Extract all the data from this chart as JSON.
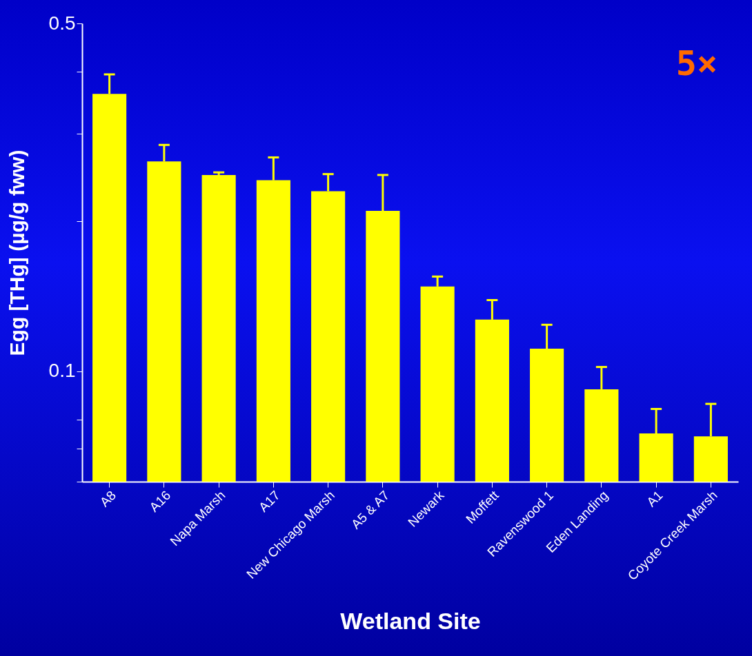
{
  "chart_data": {
    "type": "bar",
    "xlabel": "Wetland Site",
    "ylabel": "Egg [THg] (µg/g fww)",
    "categories": [
      "A8",
      "A16",
      "Napa Marsh",
      "A17",
      "New Chicago Marsh",
      "A5 & A7",
      "Newark",
      "Moffett",
      "Ravenswood 1",
      "Eden Landing",
      "A1",
      "Coyote Creek Marsh"
    ],
    "values": [
      0.361,
      0.264,
      0.248,
      0.242,
      0.23,
      0.21,
      0.148,
      0.127,
      0.111,
      0.092,
      0.075,
      0.074
    ],
    "errors": [
      [
        0.361,
        0.395
      ],
      [
        0.264,
        0.285
      ],
      [
        0.248,
        0.251
      ],
      [
        0.242,
        0.269
      ],
      [
        0.23,
        0.249
      ],
      [
        0.21,
        0.248
      ],
      [
        0.148,
        0.155
      ],
      [
        0.127,
        0.139
      ],
      [
        0.111,
        0.124
      ],
      [
        0.092,
        0.102
      ],
      [
        0.075,
        0.084
      ],
      [
        0.074,
        0.086
      ]
    ],
    "color": "#ffff00",
    "log": true,
    "ylim": [
      0.06,
      0.5
    ],
    "yticks": [
      {
        "value": 0.06,
        "label": null
      },
      {
        "value": 0.07,
        "label": null
      },
      {
        "value": 0.08,
        "label": null
      },
      0.1,
      {
        "value": 0.2,
        "label": null
      },
      {
        "value": 0.3,
        "label": null
      },
      {
        "value": 0.4,
        "label": null
      },
      0.5
    ],
    "annotations": [
      "5×"
    ],
    "grid": false
  }
}
